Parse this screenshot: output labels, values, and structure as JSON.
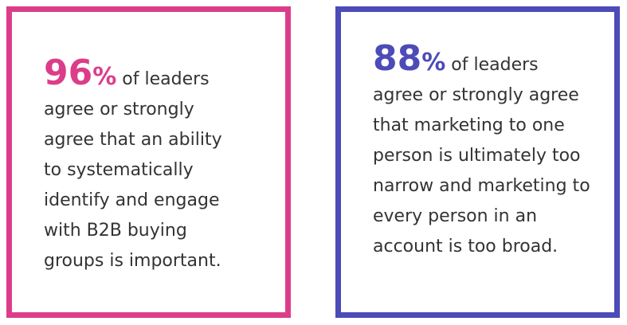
{
  "cards": [
    {
      "stat": "96",
      "unit": "%",
      "text": "of leaders agree or strongly agree that an ability to systematically identify and engage with B2B buying groups is important."
    },
    {
      "stat": "88",
      "unit": "%",
      "text": "of leaders agree or strongly agree that marketing to one person is ultimately too narrow and marketing to every person in an account is too broad."
    }
  ]
}
